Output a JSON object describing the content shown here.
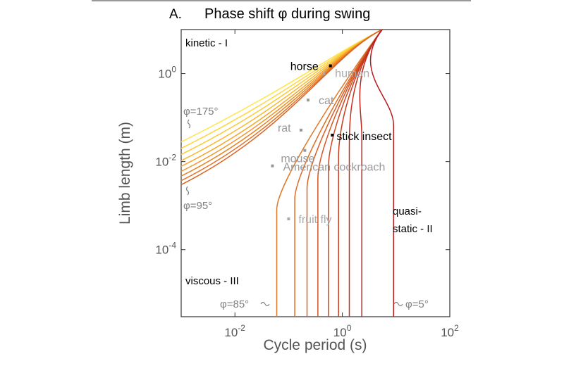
{
  "chart_data": {
    "type": "line",
    "panel_letter": "A.",
    "title": "Phase shift φ during swing",
    "xlabel": "Cycle period (s)",
    "ylabel": "Limb length (m)",
    "x_scale": "log",
    "y_scale": "log",
    "xlim": [
      0.001,
      100
    ],
    "ylim": [
      3e-06,
      10
    ],
    "grid": false,
    "x_ticks": [
      {
        "base": "10",
        "exp": "-2",
        "value": 0.01
      },
      {
        "base": "10",
        "exp": "0",
        "value": 1
      },
      {
        "base": "10",
        "exp": "2",
        "value": 100
      }
    ],
    "y_ticks": [
      {
        "base": "10",
        "exp": "0",
        "value": 1
      },
      {
        "base": "10",
        "exp": "-2",
        "value": 0.01
      },
      {
        "base": "10",
        "exp": "-4",
        "value": 0.0001
      }
    ],
    "regions": [
      {
        "text": "kinetic - I",
        "color": "#000000"
      },
      {
        "text": "quasi-",
        "color": "#000000"
      },
      {
        "text": "static - II",
        "color": "#000000"
      },
      {
        "text": "viscous - III",
        "color": "#000000"
      }
    ],
    "phase_labels": [
      {
        "text": "φ=175°",
        "color": "#7f7f7f"
      },
      {
        "text": "φ=95°",
        "color": "#7f7f7f"
      },
      {
        "text": "φ=85°",
        "color": "#7f7f7f"
      },
      {
        "text": "φ=5°",
        "color": "#7f7f7f"
      }
    ],
    "animals": [
      {
        "name": "horse",
        "x": 0.6,
        "y": 1.5,
        "color": "#000000"
      },
      {
        "name": "human",
        "x": 0.45,
        "y": 1.0,
        "color": "#aaaaaa"
      },
      {
        "name": "cat",
        "x": 0.23,
        "y": 0.25,
        "color": "#999999"
      },
      {
        "name": "rat",
        "x": 0.17,
        "y": 0.052,
        "color": "#999999"
      },
      {
        "name": "stick insect",
        "x": 0.65,
        "y": 0.04,
        "color": "#000000"
      },
      {
        "name": "mouse",
        "x": 0.2,
        "y": 0.018,
        "color": "#999999"
      },
      {
        "name": "American cockroach",
        "x": 0.05,
        "y": 0.008,
        "color": "#999999"
      },
      {
        "name": "fruit fly",
        "x": 0.1,
        "y": 0.0005,
        "color": "#aaaaaa"
      }
    ],
    "kinetic_series": [
      {
        "phi": 175,
        "y_at_xmin": 0.028,
        "color": "#ffe44d"
      },
      {
        "phi": 165,
        "y_at_xmin": 0.02,
        "color": "#ffd63f"
      },
      {
        "phi": 155,
        "y_at_xmin": 0.0145,
        "color": "#fdc836"
      },
      {
        "phi": 145,
        "y_at_xmin": 0.0105,
        "color": "#f9b730"
      },
      {
        "phi": 135,
        "y_at_xmin": 0.0078,
        "color": "#f4a52b"
      },
      {
        "phi": 125,
        "y_at_xmin": 0.006,
        "color": "#ee9427"
      },
      {
        "phi": 115,
        "y_at_xmin": 0.0047,
        "color": "#e88325"
      },
      {
        "phi": 105,
        "y_at_xmin": 0.0037,
        "color": "#e17224"
      },
      {
        "phi": 95,
        "y_at_xmin": 0.003,
        "color": "#d96223"
      }
    ],
    "quasistatic_series": [
      {
        "phi": 85,
        "x_asymptote": 0.06,
        "color": "#e07a2a"
      },
      {
        "phi": 75,
        "x_asymptote": 0.13,
        "color": "#dd6d27"
      },
      {
        "phi": 65,
        "x_asymptote": 0.22,
        "color": "#d96124"
      },
      {
        "phi": 55,
        "x_asymptote": 0.35,
        "color": "#d45422"
      },
      {
        "phi": 45,
        "x_asymptote": 0.55,
        "color": "#cf4820"
      },
      {
        "phi": 35,
        "x_asymptote": 0.85,
        "color": "#c93c1e"
      },
      {
        "phi": 25,
        "x_asymptote": 1.35,
        "color": "#c3301d"
      },
      {
        "phi": 15,
        "x_asymptote": 2.3,
        "color": "#bd261c"
      },
      {
        "phi": 5,
        "x_asymptote": 9.0,
        "color": "#b61c1c"
      }
    ],
    "convergence_point": {
      "x": 5.5,
      "y": 10
    }
  }
}
